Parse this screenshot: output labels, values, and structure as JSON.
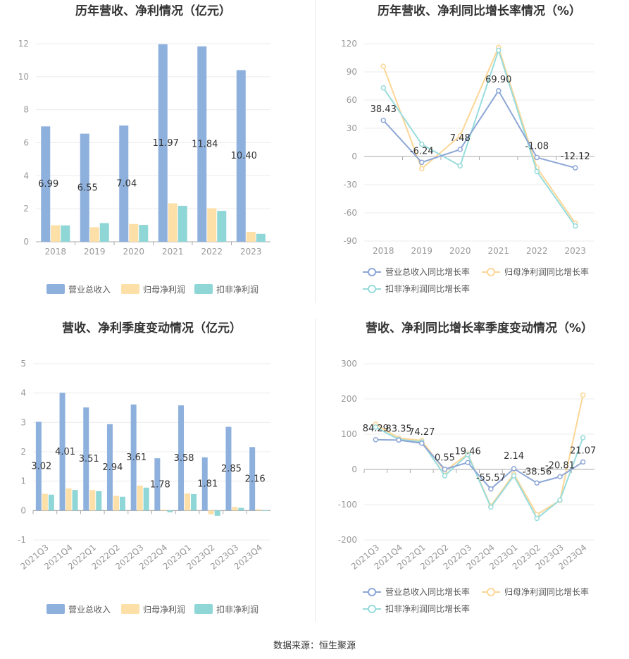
{
  "footer": {
    "source": "数据来源：恒生聚源"
  },
  "colors": {
    "revenue": "#8eb0dd",
    "net": "#fddfa8",
    "deducted": "#8fd6d6",
    "revenue_line": "#8da6d6",
    "net_line": "#fcd696",
    "deducted_line": "#98dcdc"
  },
  "chart_data": [
    {
      "id": "annual-bar",
      "type": "bar",
      "title": "历年营收、净利情况（亿元）",
      "categories": [
        "2018",
        "2019",
        "2020",
        "2021",
        "2022",
        "2023"
      ],
      "series": [
        {
          "name": "营业总收入",
          "values": [
            6.99,
            6.55,
            7.04,
            11.97,
            11.84,
            10.4
          ]
        },
        {
          "name": "归母净利润",
          "values": [
            1.0,
            0.88,
            1.08,
            2.33,
            2.03,
            0.6
          ]
        },
        {
          "name": "扣非净利润",
          "values": [
            0.99,
            1.13,
            1.02,
            2.18,
            1.87,
            0.48
          ]
        }
      ],
      "data_labels": [
        "6.99",
        "6.55",
        "7.04",
        "11.97",
        "11.84",
        "10.40"
      ],
      "ylim": [
        0,
        12
      ],
      "yticks": [
        "0",
        "2",
        "4",
        "6",
        "8",
        "10",
        "12"
      ],
      "grid": true,
      "legend": "bottom"
    },
    {
      "id": "annual-line",
      "type": "line",
      "title": "历年营收、净利同比增长率情况（%）",
      "categories": [
        "2018",
        "2019",
        "2020",
        "2021",
        "2022",
        "2023"
      ],
      "series": [
        {
          "name": "营业总收入同比增长率",
          "values": [
            38.43,
            -6.24,
            7.48,
            69.9,
            -1.08,
            -12.12
          ]
        },
        {
          "name": "归母净利润同比增长率",
          "values": [
            96,
            -13,
            22,
            116,
            -12,
            -71
          ]
        },
        {
          "name": "扣非净利润同比增长率",
          "values": [
            73,
            13,
            -10,
            113,
            -16,
            -74
          ]
        }
      ],
      "data_labels": [
        "38.43",
        "-6.24",
        "7.48",
        "69.90",
        "-1.08",
        "-12.12"
      ],
      "ylim": [
        -90,
        120
      ],
      "yticks": [
        "-90",
        "-60",
        "-30",
        "0",
        "30",
        "60",
        "90",
        "120"
      ],
      "grid": true,
      "legend": "bottom"
    },
    {
      "id": "quarter-bar",
      "type": "bar",
      "title": "营收、净利季度变动情况（亿元）",
      "categories": [
        "2021Q3",
        "2021Q4",
        "2022Q1",
        "2022Q2",
        "2022Q3",
        "2022Q4",
        "2023Q1",
        "2023Q2",
        "2023Q3",
        "2023Q4"
      ],
      "series": [
        {
          "name": "营业总收入",
          "values": [
            3.02,
            4.01,
            3.51,
            2.94,
            3.61,
            1.78,
            3.58,
            1.81,
            2.85,
            2.16
          ]
        },
        {
          "name": "归母净利润",
          "values": [
            0.57,
            0.75,
            0.7,
            0.5,
            0.85,
            0.03,
            0.58,
            -0.13,
            0.12,
            0.04
          ]
        },
        {
          "name": "扣非净利润",
          "values": [
            0.54,
            0.7,
            0.66,
            0.47,
            0.78,
            -0.06,
            0.56,
            -0.18,
            0.09,
            0.01
          ]
        }
      ],
      "data_labels": [
        "3.02",
        "4.01",
        "3.51",
        "2.94",
        "3.61",
        "1.78",
        "3.58",
        "1.81",
        "2.85",
        "2.16"
      ],
      "ylim": [
        -1,
        5
      ],
      "yticks": [
        "-1",
        "0",
        "1",
        "2",
        "3",
        "4",
        "5"
      ],
      "grid": true,
      "legend": "bottom"
    },
    {
      "id": "quarter-line",
      "type": "line",
      "title": "营收、净利同比增长率季度变动情况（%）",
      "categories": [
        "2021Q3",
        "2021Q4",
        "2022Q1",
        "2022Q2",
        "2022Q3",
        "2022Q4",
        "2023Q1",
        "2023Q2",
        "2023Q3",
        "2023Q4"
      ],
      "series": [
        {
          "name": "营业总收入同比增长率",
          "values": [
            84.29,
            83.35,
            74.27,
            0.55,
            19.46,
            -55.57,
            2.14,
            -38.56,
            -20.81,
            21.07
          ]
        },
        {
          "name": "归母净利润同比增长率",
          "values": [
            128,
            89,
            82,
            -5,
            44,
            -104,
            -13,
            -128,
            -88,
            211
          ]
        },
        {
          "name": "扣非净利润同比增长率",
          "values": [
            120,
            85,
            78,
            -18,
            42,
            -107,
            -18,
            -139,
            -87,
            90
          ]
        }
      ],
      "data_labels": [
        "84.29",
        "83.35",
        "74.27",
        "0.55",
        "19.46",
        "-55.57",
        "2.14",
        "-38.56",
        "-20.81",
        "21.07"
      ],
      "ylim": [
        -200,
        300
      ],
      "yticks": [
        "-200",
        "-100",
        "0",
        "100",
        "200",
        "300"
      ],
      "grid": true,
      "legend": "bottom"
    }
  ]
}
